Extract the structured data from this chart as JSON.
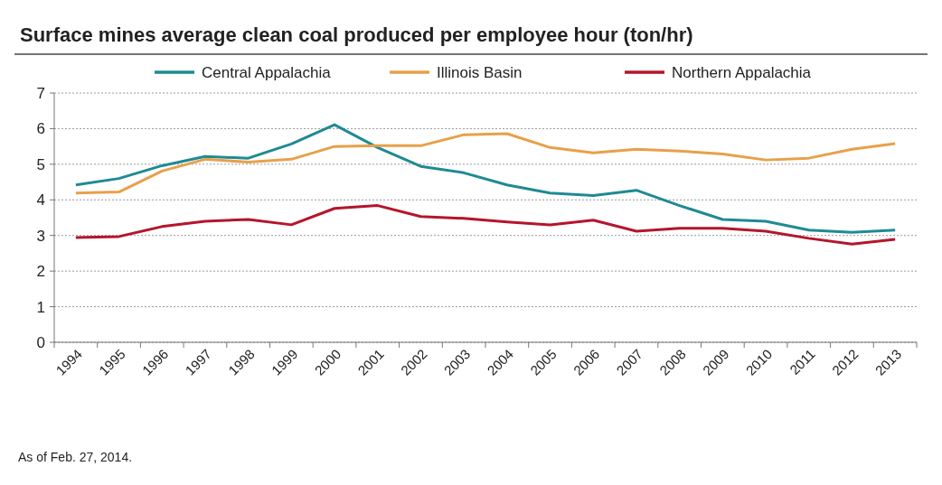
{
  "chart_data": {
    "type": "line",
    "title": "Surface mines average clean coal produced per employee hour (ton/hr)",
    "categories": [
      "1994",
      "1995",
      "1996",
      "1997",
      "1998",
      "1999",
      "2000",
      "2001",
      "2002",
      "2003",
      "2004",
      "2005",
      "2006",
      "2007",
      "2008",
      "2009",
      "2010",
      "2011",
      "2012",
      "2013"
    ],
    "series": [
      {
        "name": "Central Appalachia",
        "color": "#1f8a94",
        "values": [
          4.42,
          4.6,
          4.96,
          5.22,
          5.17,
          5.57,
          6.11,
          5.47,
          4.94,
          4.76,
          4.42,
          4.19,
          4.12,
          4.27,
          3.84,
          3.45,
          3.4,
          3.15,
          3.09,
          3.15
        ]
      },
      {
        "name": "Illinois Basin",
        "color": "#e8a04a",
        "values": [
          4.19,
          4.22,
          4.81,
          5.14,
          5.06,
          5.14,
          5.5,
          5.52,
          5.52,
          5.83,
          5.86,
          5.47,
          5.32,
          5.42,
          5.37,
          5.29,
          5.12,
          5.17,
          5.42,
          5.58
        ]
      },
      {
        "name": "Northern Appalachia",
        "color": "#b5152b",
        "values": [
          2.94,
          2.97,
          3.25,
          3.4,
          3.45,
          3.3,
          3.76,
          3.84,
          3.53,
          3.48,
          3.38,
          3.3,
          3.43,
          3.12,
          3.2,
          3.2,
          3.12,
          2.92,
          2.76,
          2.89
        ]
      }
    ],
    "ylim": [
      0,
      7
    ],
    "yticks": [
      0,
      1,
      2,
      3,
      4,
      5,
      6,
      7
    ],
    "grid": "y",
    "legend": "top",
    "line_style": "solid",
    "marker": "none",
    "annotations": [
      "As of Feb. 27, 2014."
    ]
  }
}
